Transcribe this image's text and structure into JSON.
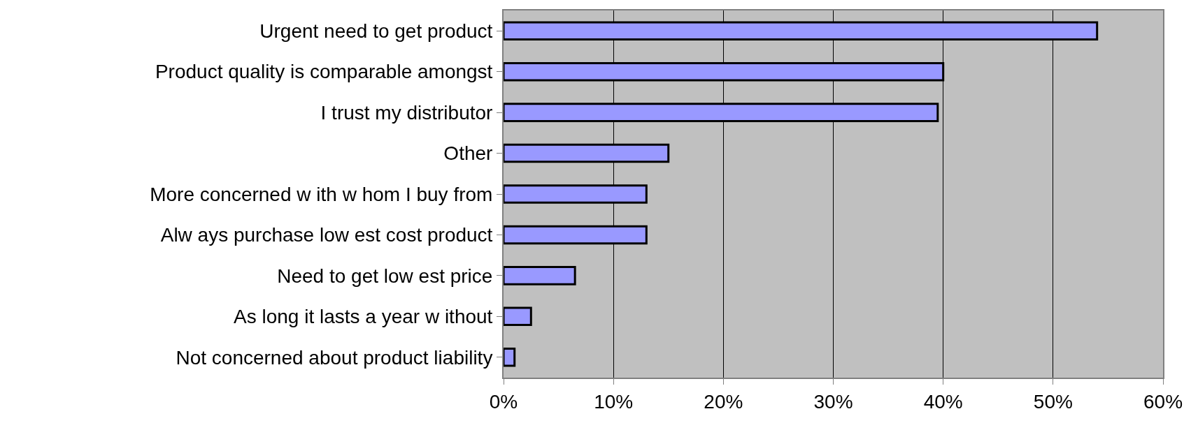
{
  "chart_data": {
    "type": "bar",
    "orientation": "horizontal",
    "categories": [
      "Urgent need to get product",
      "Product quality is comparable amongst",
      "I trust my distributor",
      "Other",
      "More concerned w ith w hom I buy from",
      "Alw ays purchase low est cost product",
      "Need to get low est price",
      "As long it lasts a year w ithout",
      "Not concerned about product liability"
    ],
    "values": [
      54,
      40,
      39.5,
      15,
      13,
      13,
      6.5,
      2.5,
      1
    ],
    "color": "#9999ff",
    "xlim": [
      0,
      60
    ],
    "xticks": [
      {
        "value": 0,
        "label": "0%"
      },
      {
        "value": 10,
        "label": "10%"
      },
      {
        "value": 20,
        "label": "20%"
      },
      {
        "value": 30,
        "label": "30%"
      },
      {
        "value": 40,
        "label": "40%"
      },
      {
        "value": 50,
        "label": "50%"
      },
      {
        "value": 60,
        "label": "60%"
      }
    ],
    "grid": "x",
    "legend": false
  }
}
